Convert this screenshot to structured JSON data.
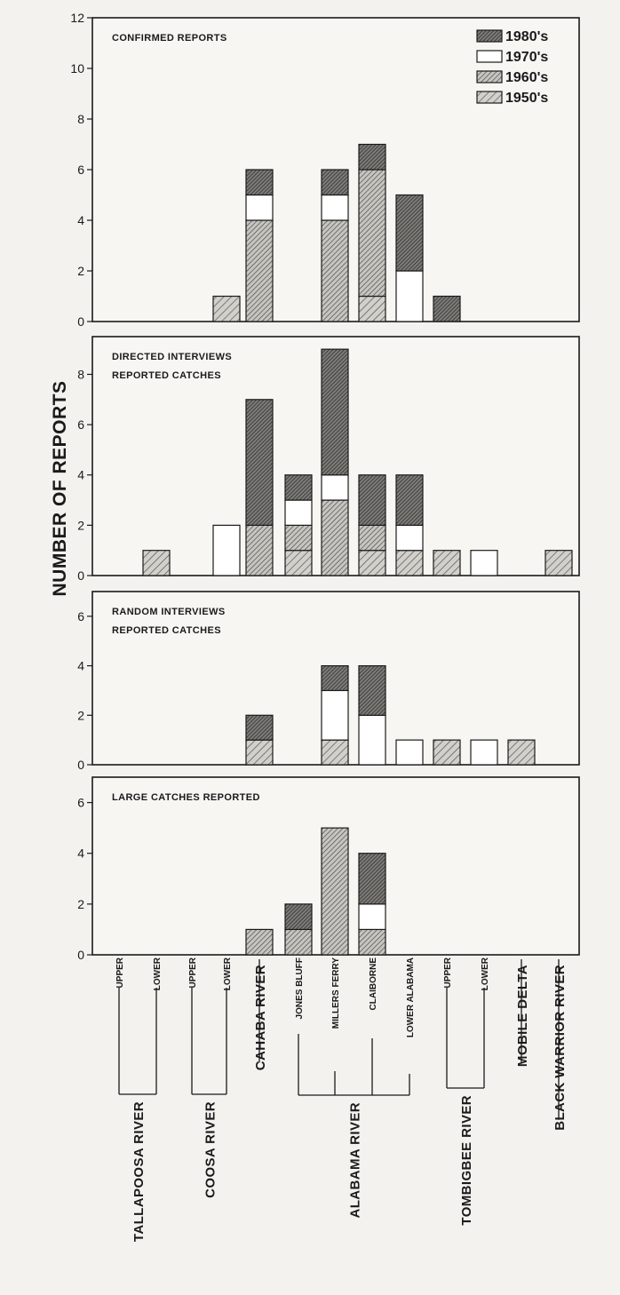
{
  "chart_data": {
    "type": "bar",
    "stacked": true,
    "ylabel": "NUMBER OF REPORTS",
    "legend": {
      "placement": "top-right",
      "entries": [
        "1980's",
        "1970's",
        "1960's",
        "1950's"
      ]
    },
    "decade_styles": {
      "1950s": {
        "fill": "#c4c2bc",
        "hatch": "light-diagonal"
      },
      "1960s": {
        "fill": "#c4c2bc",
        "hatch": "diagonal"
      },
      "1970s": {
        "fill": "#ffffff",
        "hatch": "none"
      },
      "1980s": {
        "fill": "#8e8c88",
        "hatch": "dense-diagonal"
      }
    },
    "categories": [
      {
        "label": "UPPER",
        "river": "TALLAPOOSA RIVER"
      },
      {
        "label": "LOWER",
        "river": "TALLAPOOSA RIVER"
      },
      {
        "label": "UPPER",
        "river": "COOSA RIVER"
      },
      {
        "label": "LOWER",
        "river": "COOSA RIVER"
      },
      {
        "label": "",
        "river": "CAHABA RIVER"
      },
      {
        "label": "JONES BLUFF",
        "river": "ALABAMA RIVER"
      },
      {
        "label": "MILLERS FERRY",
        "river": "ALABAMA RIVER"
      },
      {
        "label": "CLAIBORNE",
        "river": "ALABAMA RIVER"
      },
      {
        "label": "LOWER ALABAMA",
        "river": "ALABAMA RIVER"
      },
      {
        "label": "UPPER",
        "river": "TOMBIGBEE RIVER"
      },
      {
        "label": "LOWER",
        "river": "TOMBIGBEE RIVER"
      },
      {
        "label": "",
        "river": "MOBILE DELTA"
      },
      {
        "label": "",
        "river": "BLACK WARRIOR RIVER"
      }
    ],
    "rivers": [
      "TALLAPOOSA RIVER",
      "COOSA RIVER",
      "CAHABA RIVER",
      "ALABAMA RIVER",
      "TOMBIGBEE RIVER",
      "MOBILE DELTA",
      "BLACK WARRIOR RIVER"
    ],
    "panels": [
      {
        "title_lines": [
          "CONFIRMED REPORTS"
        ],
        "ylim": [
          0,
          12
        ],
        "yticks": [
          "0",
          "2",
          "4",
          "6",
          "8",
          "10",
          "12"
        ],
        "series": [
          {
            "name": "1950's",
            "values": [
              0,
              0,
              0,
              1,
              0,
              0,
              0,
              1,
              0,
              0,
              0,
              0,
              0
            ]
          },
          {
            "name": "1960's",
            "values": [
              0,
              0,
              0,
              0,
              4,
              0,
              4,
              5,
              0,
              0,
              0,
              0,
              0
            ]
          },
          {
            "name": "1970's",
            "values": [
              0,
              0,
              0,
              0,
              1,
              0,
              1,
              0,
              2,
              0,
              0,
              0,
              0
            ]
          },
          {
            "name": "1980's",
            "values": [
              0,
              0,
              0,
              0,
              1,
              0,
              1,
              1,
              3,
              1,
              0,
              0,
              0
            ]
          }
        ]
      },
      {
        "title_lines": [
          "DIRECTED INTERVIEWS",
          "REPORTED CATCHES"
        ],
        "ylim": [
          0,
          9.5
        ],
        "yticks": [
          "0",
          "2",
          "4",
          "6",
          "8"
        ],
        "series": [
          {
            "name": "1950's",
            "values": [
              0,
              1,
              0,
              0,
              0,
              1,
              0,
              1,
              1,
              1,
              0,
              0,
              1
            ]
          },
          {
            "name": "1960's",
            "values": [
              0,
              0,
              0,
              0,
              2,
              1,
              3,
              1,
              0,
              0,
              0,
              0,
              0
            ]
          },
          {
            "name": "1970's",
            "values": [
              0,
              0,
              0,
              2,
              0,
              1,
              1,
              0,
              1,
              0,
              1,
              0,
              0
            ]
          },
          {
            "name": "1980's",
            "values": [
              0,
              0,
              0,
              0,
              5,
              1,
              5,
              2,
              2,
              0,
              0,
              0,
              0
            ]
          }
        ]
      },
      {
        "title_lines": [
          "RANDOM INTERVIEWS",
          "REPORTED CATCHES"
        ],
        "ylim": [
          0,
          7
        ],
        "yticks": [
          "0",
          "2",
          "4",
          "6"
        ],
        "series": [
          {
            "name": "1950's",
            "values": [
              0,
              0,
              0,
              0,
              1,
              0,
              1,
              0,
              0,
              1,
              0,
              1,
              0
            ]
          },
          {
            "name": "1960's",
            "values": [
              0,
              0,
              0,
              0,
              0,
              0,
              0,
              0,
              0,
              0,
              0,
              0,
              0
            ]
          },
          {
            "name": "1970's",
            "values": [
              0,
              0,
              0,
              0,
              0,
              0,
              2,
              2,
              1,
              0,
              1,
              0,
              0
            ]
          },
          {
            "name": "1980's",
            "values": [
              0,
              0,
              0,
              0,
              1,
              0,
              1,
              2,
              0,
              0,
              0,
              0,
              0
            ]
          }
        ]
      },
      {
        "title_lines": [
          "LARGE CATCHES REPORTED"
        ],
        "ylim": [
          0,
          7
        ],
        "yticks": [
          "0",
          "2",
          "4",
          "6"
        ],
        "series": [
          {
            "name": "1950's",
            "values": [
              0,
              0,
              0,
              0,
              0,
              0,
              0,
              0,
              0,
              0,
              0,
              0,
              0
            ]
          },
          {
            "name": "1960's",
            "values": [
              0,
              0,
              0,
              0,
              1,
              1,
              5,
              1,
              0,
              0,
              0,
              0,
              0
            ]
          },
          {
            "name": "1970's",
            "values": [
              0,
              0,
              0,
              0,
              0,
              0,
              0,
              1,
              0,
              0,
              0,
              0,
              0
            ]
          },
          {
            "name": "1980's",
            "values": [
              0,
              0,
              0,
              0,
              0,
              1,
              0,
              2,
              0,
              0,
              0,
              0,
              0
            ]
          }
        ]
      }
    ]
  }
}
